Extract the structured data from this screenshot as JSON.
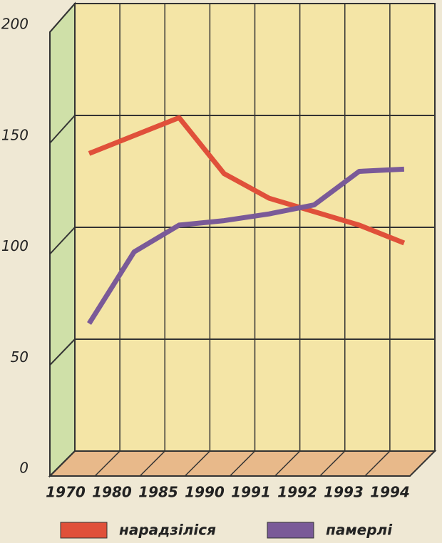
{
  "chart_data": {
    "type": "line",
    "categories": [
      "1970",
      "1980",
      "1985",
      "1990",
      "1991",
      "1992",
      "1993",
      "1994"
    ],
    "series": [
      {
        "name": "нарадзіліся",
        "color": "#e0503a",
        "values": [
          133,
          141,
          149,
          124,
          113,
          107,
          101,
          93
        ]
      },
      {
        "name": "памерлі",
        "color": "#7a5a98",
        "values": [
          57,
          89,
          101,
          103,
          106,
          110,
          125,
          126
        ]
      }
    ],
    "ylim": [
      0,
      200
    ],
    "yticks": [
      0,
      50,
      100,
      150,
      200
    ],
    "grid": true
  }
}
